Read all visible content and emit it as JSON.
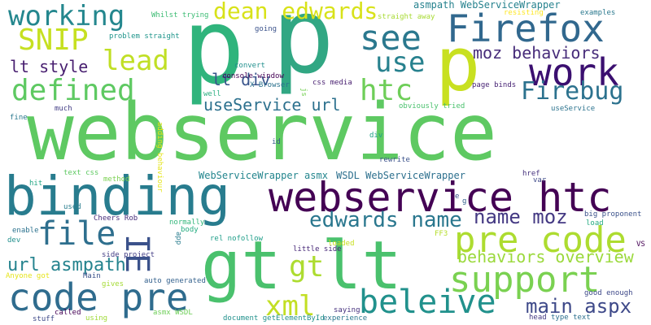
{
  "words": [
    {
      "text": "webservice",
      "color": "#5ec962"
    },
    {
      "text": "binding",
      "color": "#287c8e"
    },
    {
      "text": "gt lt",
      "color": "#4ac16d"
    },
    {
      "text": "p",
      "color": "#2fb47c"
    },
    {
      "text": "p",
      "color": "#31a783"
    },
    {
      "text": "p",
      "color": "#c8e020"
    },
    {
      "text": "webservice htc",
      "color": "#440154"
    },
    {
      "text": "Firefox",
      "color": "#31688e"
    },
    {
      "text": "work",
      "color": "#3b0f70"
    },
    {
      "text": "see",
      "color": "#2a788e"
    },
    {
      "text": "use",
      "color": "#27818e"
    },
    {
      "text": "lead",
      "color": "#c0df25"
    },
    {
      "text": "SNIP",
      "color": "#c6e021"
    },
    {
      "text": "working",
      "color": "#24878e"
    },
    {
      "text": "dean edwards",
      "color": "#d8e219"
    },
    {
      "text": "defined",
      "color": "#5ec962"
    },
    {
      "text": "htc",
      "color": "#6ece58"
    },
    {
      "text": "Firebug",
      "color": "#2c728e"
    },
    {
      "text": "moz behaviors",
      "color": "#472c7a"
    },
    {
      "text": "lt style",
      "color": "#481f70"
    },
    {
      "text": "lt div",
      "color": "#39558c"
    },
    {
      "text": "useService url",
      "color": "#2d718e"
    },
    {
      "text": "pre code",
      "color": "#addc30"
    },
    {
      "text": "support",
      "color": "#7ad151"
    },
    {
      "text": "code pre",
      "color": "#2f6c8e"
    },
    {
      "text": "file",
      "color": "#2e6f8e"
    },
    {
      "text": "edwards name",
      "color": "#2a778e"
    },
    {
      "text": "name moz",
      "color": "#443983"
    },
    {
      "text": "gt",
      "color": "#addc30"
    },
    {
      "text": "url asmpath",
      "color": "#25838e"
    },
    {
      "text": "IE",
      "color": "#3b528b"
    },
    {
      "text": "behaviors overview",
      "color": "#9bd93c"
    },
    {
      "text": "beleive",
      "color": "#21918c"
    },
    {
      "text": "xml",
      "color": "#c2df23"
    },
    {
      "text": "main aspx",
      "color": "#3e4989"
    },
    {
      "text": "asmpath WebServiceWrapper",
      "color": "#26828e"
    },
    {
      "text": "WebServiceWrapper asmx",
      "color": "#24868e"
    },
    {
      "text": "WSDL WebServiceWrapper",
      "color": "#2d708e"
    },
    {
      "text": "Whilst trying",
      "color": "#3dbc74"
    },
    {
      "text": "problem straight",
      "color": "#1f958b"
    },
    {
      "text": "straight away",
      "color": "#a8db34"
    },
    {
      "text": "resisting",
      "color": "#fde725"
    },
    {
      "text": "examples",
      "color": "#2a788e"
    },
    {
      "text": "going",
      "color": "#3b528b"
    },
    {
      "text": "convert",
      "color": "#21908d"
    },
    {
      "text": "console window",
      "color": "#440154"
    },
    {
      "text": "X Browser",
      "color": "#2c728e"
    },
    {
      "text": "css media",
      "color": "#481f70"
    },
    {
      "text": "page binds",
      "color": "#482475"
    },
    {
      "text": "obviously tried",
      "color": "#4ac16d"
    },
    {
      "text": "useService",
      "color": "#2c738e"
    },
    {
      "text": "well",
      "color": "#29af7f"
    },
    {
      "text": "much",
      "color": "#433e85"
    },
    {
      "text": "fine",
      "color": "#2a788e"
    },
    {
      "text": "id",
      "color": "#38598c"
    },
    {
      "text": "div",
      "color": "#1fa187"
    },
    {
      "text": "rewrite",
      "color": "#3b528b"
    },
    {
      "text": "text css",
      "color": "#5ec962"
    },
    {
      "text": "method",
      "color": "#7ad151"
    },
    {
      "text": "hit",
      "color": "#22a785"
    },
    {
      "text": "href",
      "color": "#46327e"
    },
    {
      "text": "var",
      "color": "#3e4989"
    },
    {
      "text": "used",
      "color": "#287d8e"
    },
    {
      "text": "Cheers Rob",
      "color": "#472d7b"
    },
    {
      "text": "normally",
      "color": "#32b67a"
    },
    {
      "text": "body",
      "color": "#26ad81"
    },
    {
      "text": "enable",
      "color": "#2c728e"
    },
    {
      "text": "dev",
      "color": "#21908d"
    },
    {
      "text": "rel nofollow",
      "color": "#1f9e89"
    },
    {
      "text": "big proponent",
      "color": "#3b528b"
    },
    {
      "text": "load",
      "color": "#25ab82"
    },
    {
      "text": "little side",
      "color": "#472878"
    },
    {
      "text": "loaded",
      "color": "#c8e020"
    },
    {
      "text": "FF3",
      "color": "#b5de2b"
    },
    {
      "text": "side project",
      "color": "#433e85"
    },
    {
      "text": "Anyone got",
      "color": "#e5e419"
    },
    {
      "text": "Main",
      "color": "#3b528b"
    },
    {
      "text": "gives",
      "color": "#a5db36"
    },
    {
      "text": "auto generated",
      "color": "#34618d"
    },
    {
      "text": "good enough",
      "color": "#3e4989"
    },
    {
      "text": "called",
      "color": "#440154"
    },
    {
      "text": "stuff",
      "color": "#3e4989"
    },
    {
      "text": "using",
      "color": "#a0da39"
    },
    {
      "text": "asmx WSDL",
      "color": "#6ece58"
    },
    {
      "text": "document getElementById",
      "color": "#21918c"
    },
    {
      "text": "experience",
      "color": "#2a788e"
    },
    {
      "text": "saying",
      "color": "#46327e"
    },
    {
      "text": "head",
      "color": "#443a83"
    },
    {
      "text": "type text",
      "color": "#2d708e"
    },
    {
      "text": "VS",
      "color": "#440154"
    },
    {
      "text": "js",
      "color": "#75d054"
    },
    {
      "text": "adding behaviour",
      "color": "#e5e419"
    },
    {
      "text": "e",
      "color": "#3b528b"
    },
    {
      "text": "g",
      "color": "#34618d"
    },
    {
      "text": "app",
      "color": "#287c8e"
    }
  ]
}
